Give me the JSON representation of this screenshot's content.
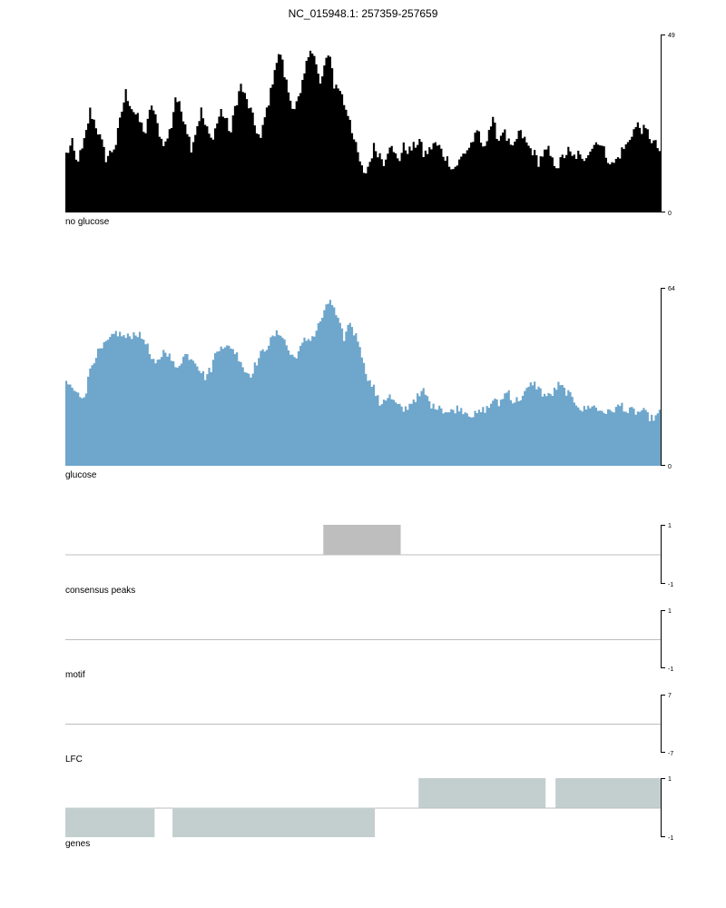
{
  "title": "NC_015948.1: 257359-257659",
  "chart_data": [
    {
      "type": "area",
      "name": "no glucose",
      "color": "#000000",
      "x_range": [
        257359,
        257659
      ],
      "ylim": [
        0,
        49
      ],
      "y_ticks": [
        "49",
        "0"
      ],
      "profile_x": [
        0,
        3,
        5,
        8,
        10,
        12,
        15,
        18,
        20,
        23,
        25,
        28,
        30,
        33,
        35,
        38,
        40,
        43,
        45,
        48,
        50,
        53,
        55,
        58,
        60,
        63,
        65,
        68,
        70,
        73,
        75,
        78,
        80,
        83,
        85,
        88,
        90,
        93,
        95,
        98,
        100,
        103,
        105,
        108,
        110,
        113,
        115,
        118,
        120,
        123,
        125,
        128,
        130,
        133,
        135,
        138,
        140,
        143,
        145,
        148,
        150,
        153,
        155,
        158,
        160,
        163,
        165,
        168,
        170,
        173,
        175,
        178,
        180,
        183,
        185,
        188,
        190,
        193,
        195,
        198,
        200,
        203,
        205,
        208,
        210,
        213,
        215,
        218,
        220,
        223,
        225,
        228,
        230,
        233,
        235,
        238,
        240,
        243,
        245,
        248,
        250,
        253,
        255,
        258,
        260,
        263,
        265,
        268,
        270,
        273,
        275,
        278,
        280,
        283,
        285,
        288,
        290,
        293,
        295,
        298,
        300
      ],
      "profile_y": [
        16,
        19,
        14,
        17,
        22,
        28,
        24,
        19,
        15,
        17,
        19,
        28,
        33,
        29,
        27,
        24,
        22,
        30,
        26,
        20,
        19,
        24,
        32,
        28,
        25,
        18,
        22,
        28,
        24,
        20,
        23,
        28,
        26,
        22,
        29,
        35,
        32,
        28,
        24,
        20,
        26,
        33,
        40,
        44,
        38,
        31,
        29,
        32,
        38,
        46,
        43,
        35,
        40,
        44,
        35,
        34,
        30,
        26,
        20,
        14,
        10,
        14,
        18,
        16,
        14,
        19,
        16,
        15,
        18,
        17,
        18,
        20,
        16,
        17,
        19,
        18,
        16,
        14,
        12,
        14,
        16,
        18,
        20,
        22,
        17,
        23,
        25,
        20,
        23,
        19,
        17,
        22,
        21,
        18,
        17,
        14,
        16,
        17,
        14,
        13,
        15,
        17,
        15,
        16,
        14,
        17,
        18,
        20,
        18,
        15,
        13,
        15,
        17,
        19,
        22,
        24,
        23,
        22,
        20,
        18,
        16
      ]
    },
    {
      "type": "area",
      "name": "glucose",
      "color": "#6ea6cc",
      "x_range": [
        257359,
        257659
      ],
      "ylim": [
        0,
        64
      ],
      "y_ticks": [
        "64",
        "0"
      ],
      "profile_x": [
        0,
        3,
        5,
        8,
        10,
        12,
        15,
        18,
        20,
        23,
        25,
        28,
        30,
        33,
        35,
        38,
        40,
        43,
        45,
        48,
        50,
        53,
        55,
        58,
        60,
        63,
        65,
        68,
        70,
        73,
        75,
        78,
        80,
        83,
        85,
        88,
        90,
        93,
        95,
        98,
        100,
        103,
        105,
        108,
        110,
        113,
        115,
        118,
        120,
        123,
        125,
        128,
        130,
        133,
        135,
        138,
        140,
        143,
        145,
        148,
        150,
        153,
        155,
        158,
        160,
        163,
        165,
        168,
        170,
        173,
        175,
        178,
        180,
        183,
        185,
        188,
        190,
        193,
        195,
        198,
        200,
        203,
        205,
        208,
        210,
        213,
        215,
        218,
        220,
        223,
        225,
        228,
        230,
        233,
        235,
        238,
        240,
        243,
        245,
        248,
        250,
        253,
        255,
        258,
        260,
        263,
        265,
        268,
        270,
        273,
        275,
        278,
        280,
        283,
        285,
        288,
        290,
        293,
        295,
        298,
        300
      ],
      "profile_y": [
        30,
        28,
        26,
        25,
        27,
        35,
        40,
        42,
        44,
        46,
        48,
        47,
        46,
        47,
        48,
        46,
        45,
        38,
        36,
        40,
        42,
        38,
        35,
        38,
        40,
        39,
        38,
        34,
        32,
        35,
        40,
        44,
        42,
        43,
        41,
        38,
        34,
        33,
        36,
        40,
        42,
        45,
        47,
        48,
        45,
        40,
        39,
        42,
        45,
        46,
        47,
        52,
        55,
        60,
        56,
        50,
        46,
        52,
        48,
        44,
        36,
        30,
        28,
        22,
        24,
        25,
        23,
        21,
        20,
        22,
        24,
        25,
        27,
        23,
        21,
        22,
        20,
        19,
        20,
        21,
        20,
        19,
        18,
        19,
        20,
        21,
        24,
        22,
        25,
        27,
        23,
        24,
        25,
        28,
        30,
        28,
        26,
        25,
        26,
        29,
        28,
        26,
        24,
        22,
        20,
        21,
        22,
        20,
        20,
        19,
        20,
        21,
        22,
        19,
        20,
        19,
        20,
        18,
        17,
        18,
        20
      ]
    },
    {
      "type": "bar",
      "name": "consensus peaks",
      "color": "#bebebe",
      "x_range": [
        257359,
        257659
      ],
      "ylim": [
        -1,
        1
      ],
      "y_ticks": [
        "1",
        "-1"
      ],
      "segments": [
        {
          "start": 257489,
          "end": 257528,
          "value": 1
        }
      ]
    },
    {
      "type": "bar",
      "name": "motif",
      "x_range": [
        257359,
        257659
      ],
      "ylim": [
        -1,
        1
      ],
      "y_ticks": [
        "1",
        "-1"
      ],
      "segments": []
    },
    {
      "type": "bar",
      "name": "LFC",
      "x_range": [
        257359,
        257659
      ],
      "ylim": [
        -7,
        7
      ],
      "y_ticks": [
        "7",
        "-7"
      ],
      "segments": []
    },
    {
      "type": "bar",
      "name": "genes",
      "color": "#c3cfcf",
      "x_range": [
        257359,
        257659
      ],
      "ylim": [
        -1,
        1
      ],
      "y_ticks": [
        "1",
        "-1"
      ],
      "segments": [
        {
          "start": 257359,
          "end": 257404,
          "value": -1
        },
        {
          "start": 257413,
          "end": 257515,
          "value": -1
        },
        {
          "start": 257537,
          "end": 257601,
          "value": 1
        },
        {
          "start": 257606,
          "end": 257659,
          "value": 1
        }
      ]
    }
  ]
}
